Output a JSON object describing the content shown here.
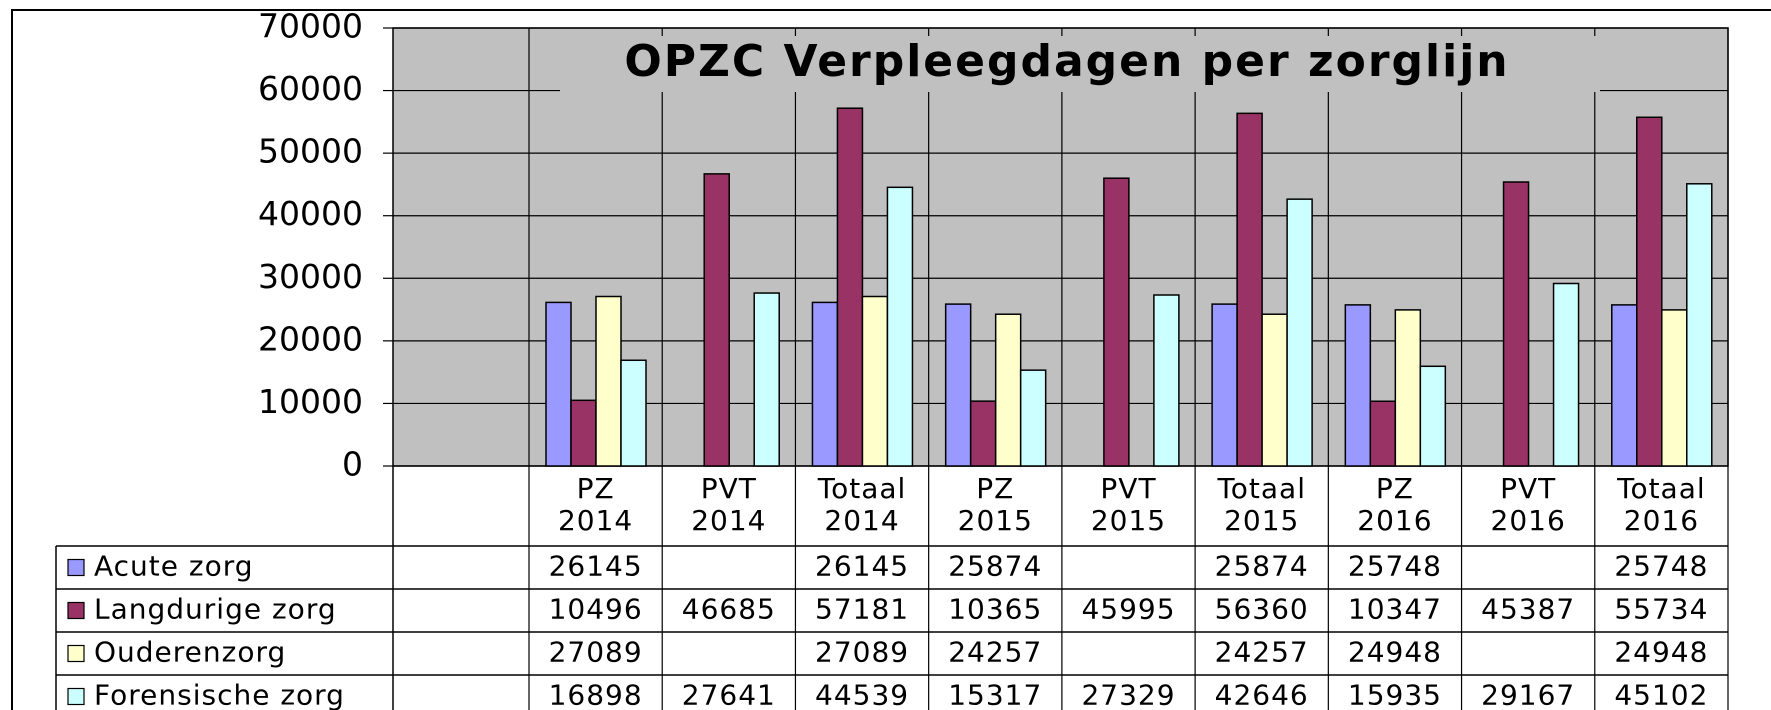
{
  "chart_data": {
    "type": "bar",
    "title": "OPZC Verpleegdagen per zorglijn",
    "categories": [
      [
        "PZ",
        "2014"
      ],
      [
        "PVT",
        "2014"
      ],
      [
        "Totaal",
        "2014"
      ],
      [
        "PZ",
        "2015"
      ],
      [
        "PVT",
        "2015"
      ],
      [
        "Totaal",
        "2015"
      ],
      [
        "PZ",
        "2016"
      ],
      [
        "PVT",
        "2016"
      ],
      [
        "Totaal",
        "2016"
      ]
    ],
    "series": [
      {
        "name": "Acute zorg",
        "color": "#9999ff",
        "values": [
          26145,
          null,
          26145,
          25874,
          null,
          25874,
          25748,
          null,
          25748
        ]
      },
      {
        "name": "Langdurige zorg",
        "color": "#993366",
        "values": [
          10496,
          46685,
          57181,
          10365,
          45995,
          56360,
          10347,
          45387,
          55734
        ]
      },
      {
        "name": "Ouderenzorg",
        "color": "#ffffcc",
        "values": [
          27089,
          null,
          27089,
          24257,
          null,
          24257,
          24948,
          null,
          24948
        ]
      },
      {
        "name": "Forensische zorg",
        "color": "#ccffff",
        "values": [
          16898,
          27641,
          44539,
          15317,
          27329,
          42646,
          15935,
          29167,
          45102
        ]
      }
    ],
    "ylim": [
      0,
      70000
    ],
    "yticks": [
      0,
      10000,
      20000,
      30000,
      40000,
      50000,
      60000,
      70000
    ],
    "grid": true,
    "plot_color": "#c0c0c0"
  }
}
